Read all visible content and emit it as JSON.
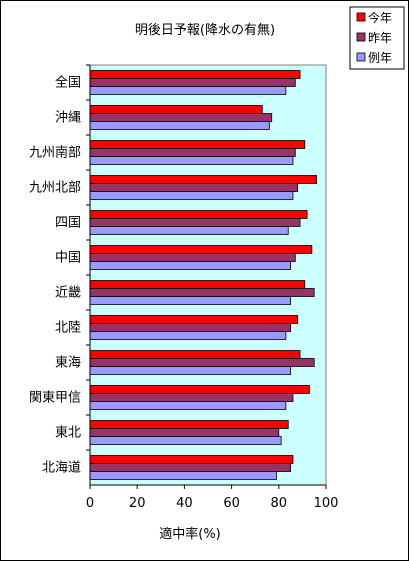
{
  "chart_data": {
    "type": "bar",
    "orientation": "horizontal",
    "title": "明後日予報(降水の有無)",
    "xlabel": "適中率(%)",
    "ylabel": "",
    "xlim": [
      0,
      100
    ],
    "xticks": [
      0,
      20,
      40,
      60,
      80,
      100
    ],
    "grid": false,
    "legend_position": "top-right",
    "plot_background": "#ccffff",
    "categories": [
      "全国",
      "沖縄",
      "九州南部",
      "九州北部",
      "四国",
      "中国",
      "近畿",
      "北陸",
      "東海",
      "関東甲信",
      "東北",
      "北海道"
    ],
    "series": [
      {
        "name": "今年",
        "color": "#ff0000",
        "values": [
          89,
          73,
          91,
          96,
          92,
          94,
          91,
          88,
          89,
          93,
          84,
          86
        ]
      },
      {
        "name": "昨年",
        "color": "#993366",
        "values": [
          87,
          77,
          87,
          88,
          89,
          87,
          95,
          85,
          95,
          86,
          80,
          85
        ]
      },
      {
        "name": "例年",
        "color": "#9999ff",
        "values": [
          83,
          76,
          86,
          86,
          84,
          85,
          85,
          83,
          85,
          83,
          81,
          79
        ]
      }
    ]
  }
}
